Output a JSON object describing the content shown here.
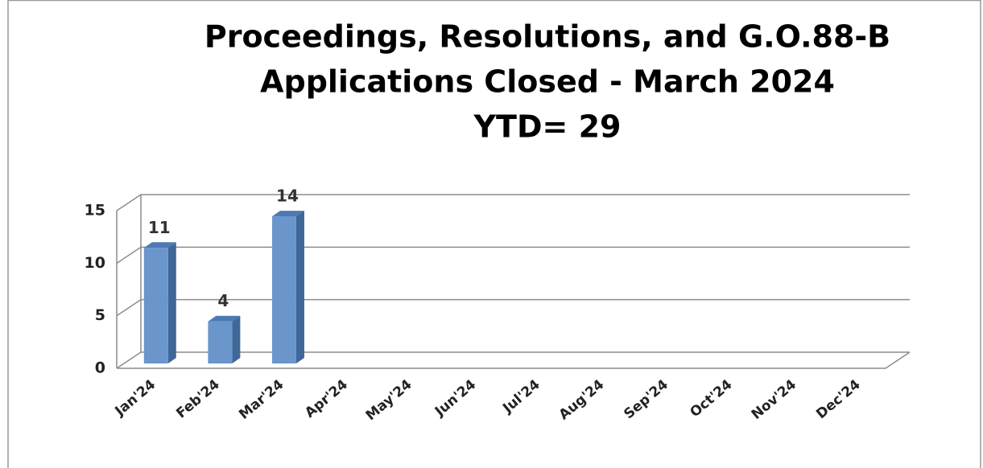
{
  "chart_data": {
    "type": "bar3d",
    "title": [
      "Proceedings, Resolutions, and G.O.88-B",
      "Applications Closed - March 2024"
    ],
    "subtitle": "YTD= 29",
    "categories": [
      "Jan'24",
      "Feb'24",
      "Mar'24",
      "Apr'24",
      "May'24",
      "Jun'24",
      "Jul'24",
      "Aug'24",
      "Sep'24",
      "Oct'24",
      "Nov'24",
      "Dec'24"
    ],
    "values": [
      11,
      4,
      14,
      null,
      null,
      null,
      null,
      null,
      null,
      null,
      null,
      null
    ],
    "color": "#6a96cc",
    "ylim": [
      0,
      15
    ],
    "yticks": [
      0,
      5,
      10,
      15
    ],
    "grid": true
  }
}
